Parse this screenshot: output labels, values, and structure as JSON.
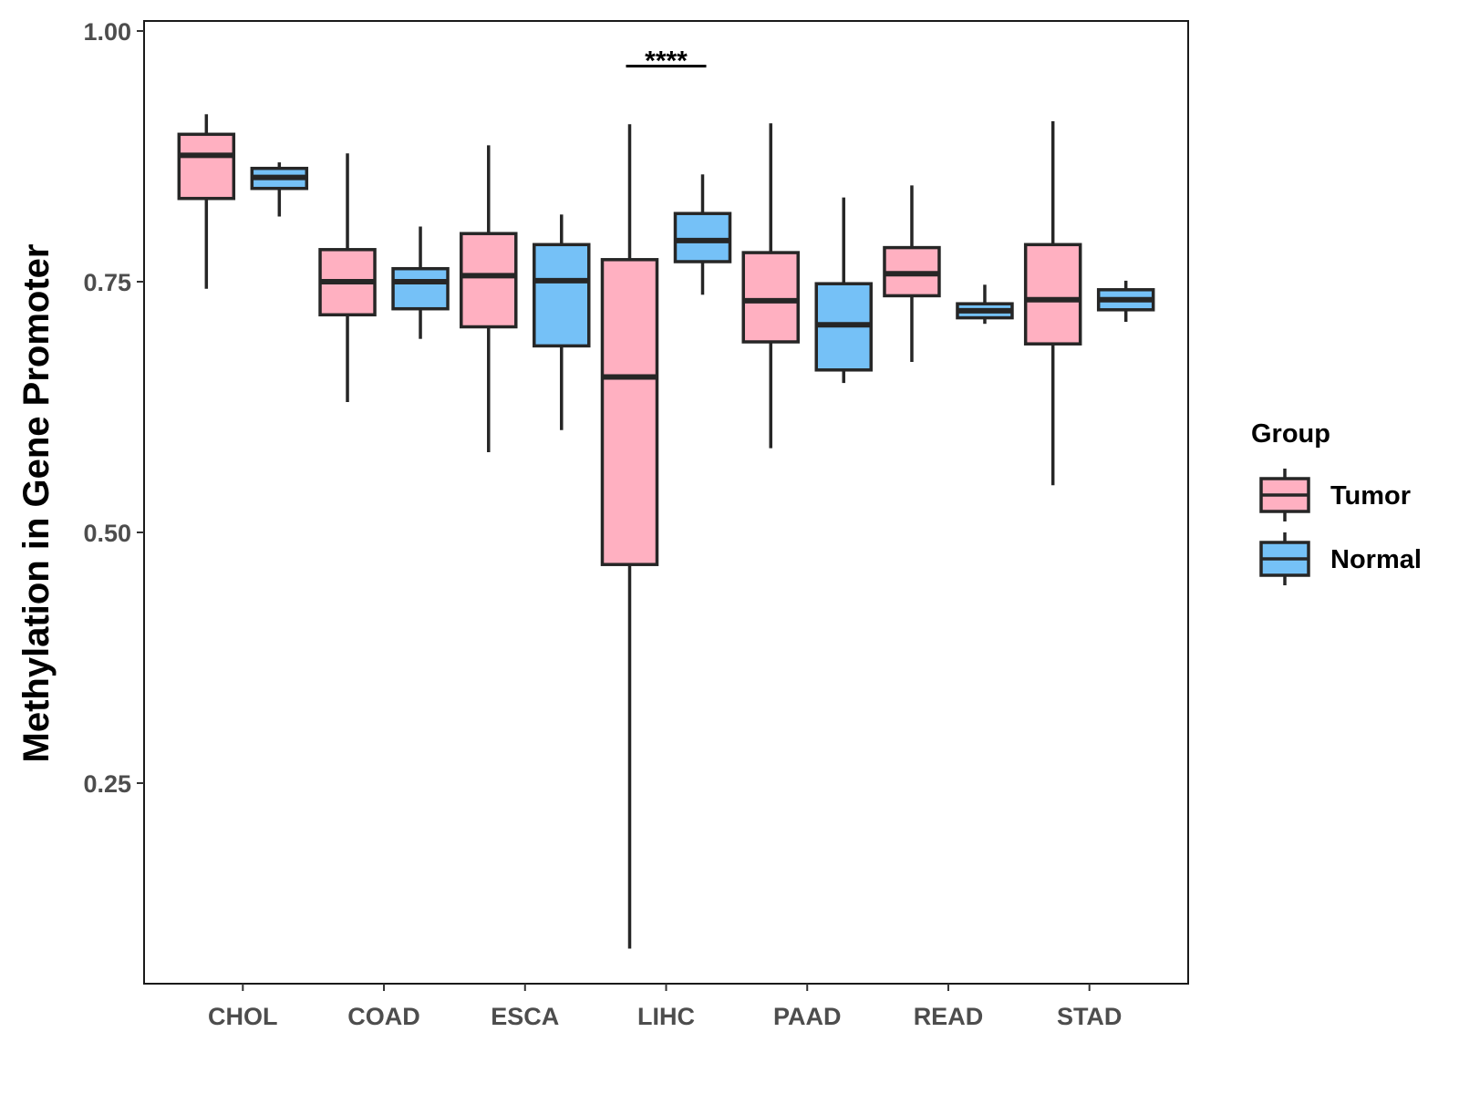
{
  "chart_data": {
    "type": "boxplot",
    "title": "",
    "xlabel": "",
    "ylabel": "Methylation in Gene Promoter",
    "ylim": [
      0.05,
      1.01
    ],
    "yticks": [
      0.25,
      0.5,
      0.75,
      1.0
    ],
    "ytick_labels": [
      "0.25",
      "0.50",
      "0.75",
      "1.00"
    ],
    "categories": [
      "CHOL",
      "COAD",
      "ESCA",
      "LIHC",
      "PAAD",
      "READ",
      "STAD"
    ],
    "grid": false,
    "legend": {
      "title": "Group",
      "position": "right",
      "entries": [
        "Tumor",
        "Normal"
      ]
    },
    "series": [
      {
        "name": "Tumor",
        "color": "#FFB0C1",
        "boxes": [
          {
            "category": "CHOL",
            "min": 0.743,
            "q1": 0.833,
            "median": 0.876,
            "q3": 0.897,
            "max": 0.917
          },
          {
            "category": "COAD",
            "min": 0.63,
            "q1": 0.717,
            "median": 0.75,
            "q3": 0.782,
            "max": 0.878
          },
          {
            "category": "ESCA",
            "min": 0.58,
            "q1": 0.705,
            "median": 0.756,
            "q3": 0.798,
            "max": 0.886
          },
          {
            "category": "LIHC",
            "min": 0.085,
            "q1": 0.468,
            "median": 0.655,
            "q3": 0.772,
            "max": 0.907
          },
          {
            "category": "PAAD",
            "min": 0.584,
            "q1": 0.69,
            "median": 0.731,
            "q3": 0.779,
            "max": 0.908
          },
          {
            "category": "READ",
            "min": 0.67,
            "q1": 0.736,
            "median": 0.758,
            "q3": 0.784,
            "max": 0.846
          },
          {
            "category": "STAD",
            "min": 0.547,
            "q1": 0.688,
            "median": 0.732,
            "q3": 0.787,
            "max": 0.91
          }
        ]
      },
      {
        "name": "Normal",
        "color": "#75C1F7",
        "boxes": [
          {
            "category": "CHOL",
            "min": 0.815,
            "q1": 0.843,
            "median": 0.854,
            "q3": 0.863,
            "max": 0.869
          },
          {
            "category": "COAD",
            "min": 0.693,
            "q1": 0.723,
            "median": 0.75,
            "q3": 0.763,
            "max": 0.805
          },
          {
            "category": "ESCA",
            "min": 0.602,
            "q1": 0.686,
            "median": 0.751,
            "q3": 0.787,
            "max": 0.817
          },
          {
            "category": "LIHC",
            "min": 0.737,
            "q1": 0.77,
            "median": 0.791,
            "q3": 0.818,
            "max": 0.857
          },
          {
            "category": "PAAD",
            "min": 0.649,
            "q1": 0.662,
            "median": 0.707,
            "q3": 0.748,
            "max": 0.834
          },
          {
            "category": "READ",
            "min": 0.708,
            "q1": 0.714,
            "median": 0.721,
            "q3": 0.728,
            "max": 0.747
          },
          {
            "category": "STAD",
            "min": 0.71,
            "q1": 0.722,
            "median": 0.732,
            "q3": 0.742,
            "max": 0.751
          }
        ]
      }
    ],
    "annotations": [
      {
        "category": "LIHC",
        "text": "****",
        "y": 0.965
      }
    ]
  }
}
